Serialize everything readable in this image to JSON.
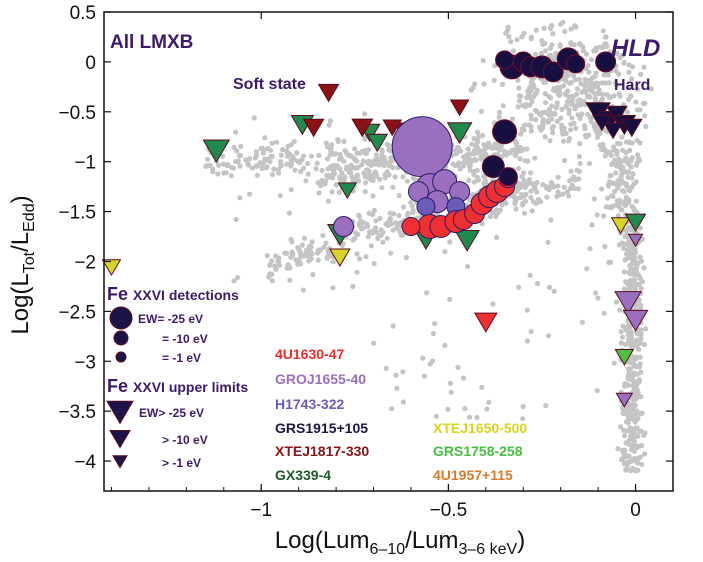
{
  "chart_data": {
    "type": "scatter",
    "xlabel": "Log(Lum6–10/Lum3–6 keV)",
    "ylabel": "Log(LTot/LEdd)",
    "xlim": [
      -1.42,
      0.1
    ],
    "ylim": [
      -4.3,
      0.5
    ],
    "x_ticks": [
      -1,
      -0.5,
      0
    ],
    "x_tick_labels": [
      "−1",
      "−0.5",
      "0"
    ],
    "y_ticks": [
      0.5,
      0,
      -0.5,
      -1,
      -1.5,
      -2,
      -2.5,
      -3,
      -3.5,
      -4
    ],
    "y_tick_labels": [
      "0.5",
      "0",
      "−0.5",
      "−1",
      "−1.5",
      "−2",
      "−2.5",
      "−3",
      "−3.5",
      "−4"
    ],
    "grid": false,
    "annotations": {
      "all_lmxb": "All LMXB",
      "hld": "HLD",
      "soft_state": "Soft state",
      "hard": "Hard"
    },
    "legend_markers": {
      "detections_title_main": "Fe",
      "detections_title_small": "XXVI detections",
      "detections": [
        {
          "label": "EW= -25 eV",
          "size": 3
        },
        {
          "label": "= -10 eV",
          "size": 2
        },
        {
          "label": "= -1 eV",
          "size": 1
        }
      ],
      "limits_title_main": "Fe",
      "limits_title_small": "XXVI upper limits",
      "limits": [
        {
          "label": "EW> -25 eV",
          "size": 3
        },
        {
          "label": "> -10 eV",
          "size": 2
        },
        {
          "label": "> -1 eV",
          "size": 1
        }
      ]
    },
    "legend_sources": [
      {
        "name": "4U1630-47",
        "color": "#ee2a2a"
      },
      {
        "name": "GROJ1655-40",
        "color": "#9a6fc0"
      },
      {
        "name": "H1743-322",
        "color": "#6a5cb8"
      },
      {
        "name": "GRS1915+105",
        "color": "#1c1446"
      },
      {
        "name": "XTEJ1817-330",
        "color": "#8a1212"
      },
      {
        "name": "GX339-4",
        "color": "#1e5a2a"
      },
      {
        "name": "XTEJ1650-500",
        "color": "#d9d41e"
      },
      {
        "name": "GRS1758-258",
        "color": "#44c040"
      },
      {
        "name": "4U1957+115",
        "color": "#d97a2a"
      }
    ],
    "colors": {
      "background_points": "#c4c4c4",
      "4U1630-47": "#f03030",
      "GROJ1655-40": "#9a6fc0",
      "H1743-322": "#6a5cb8",
      "GRS1915+105": "#170f40",
      "XTEJ1817-330": "#8a1212",
      "GX339-4": "#1f8a4c",
      "XTEJ1650-500": "#d6d62a",
      "GRS1758-258": "#50bf40",
      "4U1957+115": "#d97a2a",
      "annotation": "#3d1a6b"
    },
    "detections": [
      {
        "source": "GROJ1655-40",
        "x": -0.57,
        "y": -0.85,
        "size": 30
      },
      {
        "source": "GROJ1655-40",
        "x": -0.55,
        "y": -1.25,
        "size": 13
      },
      {
        "source": "GROJ1655-40",
        "x": -0.51,
        "y": -1.2,
        "size": 12
      },
      {
        "source": "GROJ1655-40",
        "x": -0.53,
        "y": -1.4,
        "size": 11
      },
      {
        "source": "GROJ1655-40",
        "x": -0.47,
        "y": -1.3,
        "size": 10
      },
      {
        "source": "GROJ1655-40",
        "x": -0.58,
        "y": -1.3,
        "size": 10
      },
      {
        "source": "GROJ1655-40",
        "x": -0.78,
        "y": -1.65,
        "size": 10
      },
      {
        "source": "H1743-322",
        "x": -0.48,
        "y": -1.45,
        "size": 9
      },
      {
        "source": "H1743-322",
        "x": -0.56,
        "y": -1.45,
        "size": 9
      },
      {
        "source": "4U1630-47",
        "x": -0.55,
        "y": -1.65,
        "size": 12
      },
      {
        "source": "4U1630-47",
        "x": -0.52,
        "y": -1.65,
        "size": 11
      },
      {
        "source": "4U1630-47",
        "x": -0.48,
        "y": -1.6,
        "size": 11
      },
      {
        "source": "4U1630-47",
        "x": -0.46,
        "y": -1.58,
        "size": 10
      },
      {
        "source": "4U1630-47",
        "x": -0.43,
        "y": -1.52,
        "size": 10
      },
      {
        "source": "4U1630-47",
        "x": -0.41,
        "y": -1.42,
        "size": 11
      },
      {
        "source": "4U1630-47",
        "x": -0.39,
        "y": -1.35,
        "size": 11
      },
      {
        "source": "4U1630-47",
        "x": -0.37,
        "y": -1.3,
        "size": 11
      },
      {
        "source": "4U1630-47",
        "x": -0.35,
        "y": -1.25,
        "size": 10
      },
      {
        "source": "4U1630-47",
        "x": -0.34,
        "y": -1.17,
        "size": 9
      },
      {
        "source": "4U1630-47",
        "x": -0.6,
        "y": -1.65,
        "size": 9
      },
      {
        "source": "GRS1915+105",
        "x": -0.35,
        "y": -0.7,
        "size": 12
      },
      {
        "source": "GRS1915+105",
        "x": -0.38,
        "y": -1.05,
        "size": 11
      },
      {
        "source": "GRS1915+105",
        "x": -0.34,
        "y": -1.15,
        "size": 9
      },
      {
        "source": "GRS1915+105",
        "x": -0.33,
        "y": -0.05,
        "size": 12
      },
      {
        "source": "GRS1915+105",
        "x": -0.3,
        "y": 0.0,
        "size": 10
      },
      {
        "source": "GRS1915+105",
        "x": -0.28,
        "y": -0.05,
        "size": 10
      },
      {
        "source": "GRS1915+105",
        "x": -0.25,
        "y": -0.05,
        "size": 11
      },
      {
        "source": "GRS1915+105",
        "x": -0.22,
        "y": -0.1,
        "size": 10
      },
      {
        "source": "GRS1915+105",
        "x": -0.18,
        "y": 0.03,
        "size": 11
      },
      {
        "source": "GRS1915+105",
        "x": -0.16,
        "y": -0.02,
        "size": 9
      },
      {
        "source": "GRS1915+105",
        "x": -0.08,
        "y": 0.0,
        "size": 10
      },
      {
        "source": "GRS1915+105",
        "x": -0.35,
        "y": 0.02,
        "size": 9
      }
    ],
    "upper_limits": [
      {
        "source": "GX339-4",
        "x": -1.12,
        "y": -0.88,
        "size": 13
      },
      {
        "source": "GX339-4",
        "x": -0.89,
        "y": -0.62,
        "size": 11
      },
      {
        "source": "GX339-4",
        "x": -0.71,
        "y": -0.7,
        "size": 10
      },
      {
        "source": "GX339-4",
        "x": -0.69,
        "y": -0.8,
        "size": 10
      },
      {
        "source": "GX339-4",
        "x": -0.73,
        "y": -0.65,
        "size": 10
      },
      {
        "source": "GX339-4",
        "x": -0.47,
        "y": -0.7,
        "size": 12
      },
      {
        "source": "GX339-4",
        "x": -0.77,
        "y": -1.28,
        "size": 9
      },
      {
        "source": "GX339-4",
        "x": -0.79,
        "y": -1.72,
        "size": 12
      },
      {
        "source": "GX339-4",
        "x": -0.56,
        "y": -1.78,
        "size": 10
      },
      {
        "source": "GX339-4",
        "x": -0.45,
        "y": -1.78,
        "size": 12
      },
      {
        "source": "GX339-4",
        "x": -0.46,
        "y": -1.58,
        "size": 9
      },
      {
        "source": "XTEJ1817-330",
        "x": -0.82,
        "y": -0.3,
        "size": 10
      },
      {
        "source": "XTEJ1817-330",
        "x": -0.47,
        "y": -0.45,
        "size": 9
      },
      {
        "source": "XTEJ1817-330",
        "x": -0.86,
        "y": -0.65,
        "size": 10
      },
      {
        "source": "XTEJ1817-330",
        "x": -0.73,
        "y": -0.65,
        "size": 10
      },
      {
        "source": "XTEJ1817-330",
        "x": -0.62,
        "y": -0.68,
        "size": 9
      },
      {
        "source": "XTEJ1817-330",
        "x": -0.57,
        "y": -0.72,
        "size": 9
      },
      {
        "source": "XTEJ1817-330",
        "x": -0.65,
        "y": -0.65,
        "size": 9
      },
      {
        "source": "GRS1915+105",
        "x": -0.1,
        "y": -0.5,
        "size": 12
      },
      {
        "source": "GRS1915+105",
        "x": -0.07,
        "y": -0.58,
        "size": 11
      },
      {
        "source": "GRS1915+105",
        "x": -0.05,
        "y": -0.52,
        "size": 10
      },
      {
        "source": "GRS1915+105",
        "x": -0.03,
        "y": -0.62,
        "size": 11
      },
      {
        "source": "GRS1915+105",
        "x": -0.01,
        "y": -0.65,
        "size": 10
      },
      {
        "source": "GRS1915+105",
        "x": -0.06,
        "y": -0.68,
        "size": 9
      },
      {
        "source": "GRS1915+105",
        "x": -0.09,
        "y": -0.6,
        "size": 9
      },
      {
        "source": "XTEJ1650-500",
        "x": -1.4,
        "y": -2.05,
        "size": 9
      },
      {
        "source": "XTEJ1650-500",
        "x": -0.79,
        "y": -1.95,
        "size": 10
      },
      {
        "source": "XTEJ1650-500",
        "x": -0.04,
        "y": -1.63,
        "size": 9
      },
      {
        "source": "4U1630-47",
        "x": -0.4,
        "y": -2.6,
        "size": 11
      },
      {
        "source": "GROJ1655-40",
        "x": -0.02,
        "y": -2.4,
        "size": 13
      },
      {
        "source": "GROJ1655-40",
        "x": 0.0,
        "y": -2.58,
        "size": 12
      },
      {
        "source": "GRS1758-258",
        "x": -0.03,
        "y": -2.95,
        "size": 9
      },
      {
        "source": "GROJ1655-40",
        "x": -0.03,
        "y": -3.38,
        "size": 8
      },
      {
        "source": "GX339-4",
        "x": 0.0,
        "y": -1.6,
        "size": 10
      },
      {
        "source": "GROJ1655-40",
        "x": -0.0,
        "y": -1.78,
        "size": 7
      }
    ]
  }
}
